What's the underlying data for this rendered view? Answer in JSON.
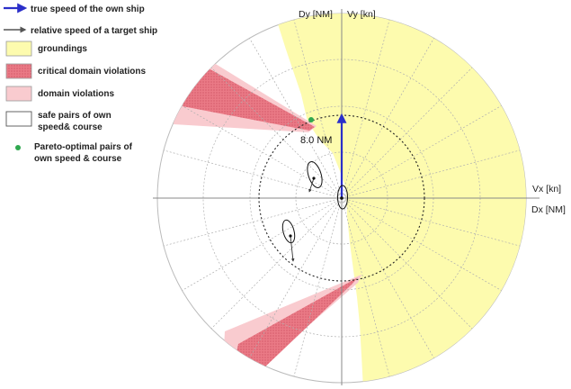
{
  "legend": {
    "true_speed": "true speed of the own ship",
    "relative_speed": "relative speed of a target ship",
    "groundings": "groundings",
    "critical_domain_violations": "critical domain violations",
    "domain_violations": "domain violations",
    "safe_pairs_line1": "safe pairs of own",
    "safe_pairs_line2": "speed& course",
    "pareto_line1": "Pareto-optimal pairs of",
    "pareto_line2": "own speed & course"
  },
  "axes": {
    "dy": "Dy [NM]",
    "vy": "Vy [kn]",
    "vx": "Vx [kn]",
    "dx": "Dx [NM]"
  },
  "range_label": "8.0 NM",
  "colors": {
    "grounding": "#fdfbae",
    "critical": "#ea7a86",
    "domain": "#f9cbcf",
    "true_speed_arrow": "#2b2fc9",
    "relative_arrow": "#555555",
    "pareto": "#2fa84f",
    "grid": "#b0b0b0",
    "axis": "#888888",
    "dotted_circle": "#222222"
  }
}
